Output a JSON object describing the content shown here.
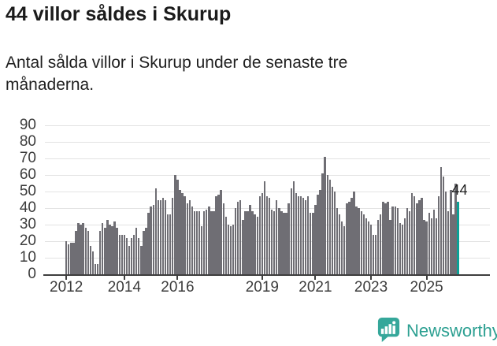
{
  "title": "44 villor såldes i Skurup",
  "subtitle": "Antal sålda villor i Skurup under de senaste tre månaderna.",
  "chart_data": {
    "type": "bar",
    "title": "44 villor såldes i Skurup",
    "subtitle": "Antal sålda villor i Skurup under de senaste tre månaderna.",
    "ylabel": "",
    "xlabel": "",
    "ylim": [
      0,
      90
    ],
    "y_ticks": [
      0,
      10,
      20,
      30,
      40,
      50,
      60,
      70,
      80,
      90
    ],
    "grid": true,
    "legend": "none",
    "x_tick_labels": [
      "2012",
      "2014",
      "2016",
      "2019",
      "2021",
      "2023",
      "2025"
    ],
    "x_tick_indices": [
      0,
      24,
      46,
      81,
      103,
      126,
      149
    ],
    "values": [
      20,
      18,
      19,
      19,
      26,
      31,
      30,
      31,
      28,
      26,
      17,
      14,
      6,
      6,
      26,
      31,
      28,
      33,
      30,
      29,
      32,
      28,
      24,
      24,
      24,
      22,
      17,
      22,
      24,
      28,
      22,
      17,
      26,
      28,
      37,
      41,
      42,
      52,
      45,
      45,
      46,
      45,
      36,
      36,
      46,
      60,
      57,
      51,
      49,
      47,
      43,
      45,
      41,
      38,
      38,
      38,
      29,
      38,
      39,
      41,
      38,
      38,
      47,
      48,
      51,
      43,
      35,
      30,
      29,
      30,
      40,
      44,
      45,
      33,
      38,
      38,
      42,
      38,
      36,
      35,
      47,
      49,
      56,
      47,
      46,
      39,
      38,
      45,
      40,
      38,
      37,
      37,
      43,
      52,
      56,
      49,
      47,
      47,
      46,
      45,
      47,
      37,
      37,
      42,
      48,
      51,
      61,
      71,
      60,
      57,
      53,
      50,
      40,
      36,
      32,
      29,
      43,
      44,
      46,
      50,
      41,
      40,
      38,
      36,
      34,
      32,
      30,
      24,
      24,
      33,
      36,
      44,
      43,
      44,
      33,
      41,
      41,
      40,
      31,
      30,
      34,
      40,
      38,
      49,
      47,
      43,
      45,
      46,
      33,
      32,
      37,
      34,
      39,
      34,
      47,
      65,
      59,
      50,
      38,
      51,
      36,
      55,
      44
    ],
    "highlight_last": true,
    "last_value_label": "44",
    "bar_color": "#6F6E74",
    "highlight_color": "#0CA095",
    "gridline_color": "#e3e3e3",
    "axis_color": "#3e3e3e"
  },
  "footer": {
    "brand": "Newsworthy",
    "brand_color": "#2da092",
    "logo_color": "#35a79a",
    "logo_icon": "newsworthy-chart-bubble-icon"
  }
}
